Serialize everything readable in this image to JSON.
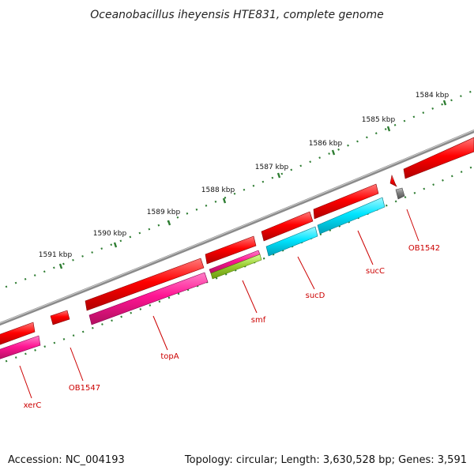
{
  "title": "Oceanobacillus iheyensis HTE831, complete genome",
  "footer": {
    "accession": "Accession: NC_004193",
    "summary": "Topology: circular; Length: 3,630,528 bp; Genes: 3,591"
  },
  "colors": {
    "backbone": "#8a8a8a",
    "tick": "#2e7d32",
    "cds": "#ff0000",
    "gene_magenta": "#ff1493",
    "gene_cyan": "#00e5ff",
    "gene_green": "#9acd32",
    "gene_gray": "#808080",
    "label": "#cc0000"
  },
  "scale_labels": [
    "1584 kbp",
    "1585 kbp",
    "1586 kbp",
    "1587 kbp",
    "1588 kbp",
    "1589 kbp",
    "1590 kbp",
    "1591 kbp"
  ],
  "gene_labels": [
    "OB1542",
    "sucC",
    "sucD",
    "smf",
    "topA",
    "OB1547",
    "xerC"
  ]
}
